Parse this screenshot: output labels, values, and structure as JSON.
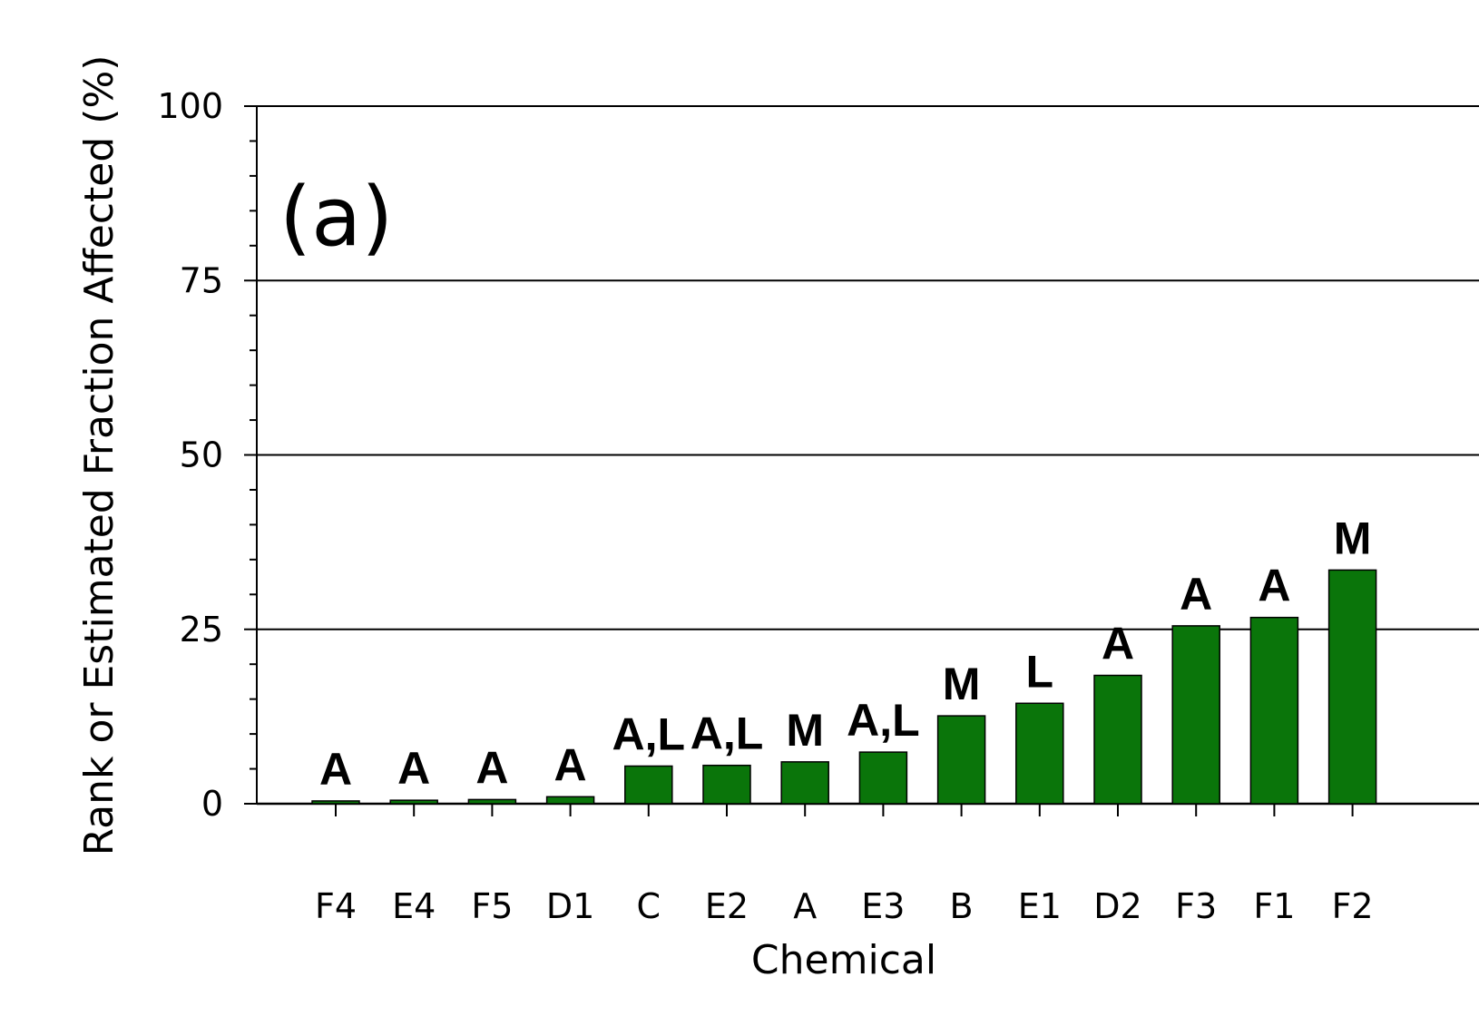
{
  "chart_data": {
    "type": "bar",
    "panel_label": "(a)",
    "xlabel": "Chemical",
    "ylabel": "Rank or Estimated Fraction Affected (%)",
    "ylim": [
      0,
      100
    ],
    "yticks": [
      "0",
      "25",
      "50",
      "75",
      "100"
    ],
    "grid": "horizontal",
    "bar_color": "#0a750a",
    "categories": [
      "F4",
      "E4",
      "F5",
      "D1",
      "C",
      "E2",
      "A",
      "E3",
      "B",
      "E1",
      "D2",
      "F3",
      "F1",
      "F2"
    ],
    "values": [
      0.4,
      0.5,
      0.6,
      1.0,
      5.4,
      5.5,
      6.0,
      7.4,
      12.6,
      14.4,
      18.4,
      25.5,
      26.7,
      33.5
    ],
    "bar_labels": [
      "A",
      "A",
      "A",
      "A",
      "A,L",
      "A,L",
      "M",
      "A,L",
      "M",
      "L",
      "A",
      "A",
      "A",
      "M"
    ]
  }
}
